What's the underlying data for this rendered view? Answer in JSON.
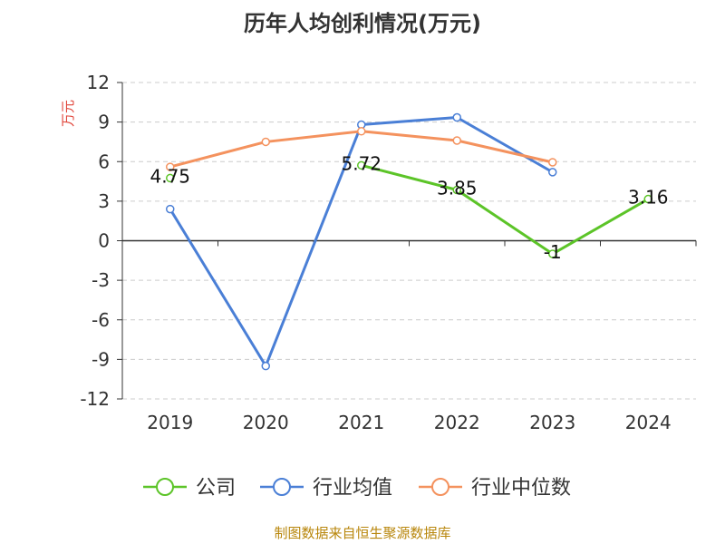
{
  "title": "历年人均创利情况(万元)",
  "footer": "制图数据来自恒生聚源数据库",
  "chart_data": {
    "type": "line",
    "categories": [
      "2019",
      "2020",
      "2021",
      "2022",
      "2023",
      "2024"
    ],
    "ylabel": "万元",
    "ylim": [
      -12,
      12
    ],
    "yticks": [
      12,
      9,
      6,
      3,
      0,
      -3,
      -6,
      -9,
      -12
    ],
    "grid": true,
    "legend_position": "bottom",
    "series": [
      {
        "name": "公司",
        "color": "#5cc428",
        "values": [
          4.75,
          null,
          5.72,
          3.85,
          -1,
          3.16
        ],
        "labels": [
          "4.75",
          "",
          "5.72",
          "3.85",
          "-1",
          "3.16"
        ]
      },
      {
        "name": "行业均值",
        "color": "#4a7fd6",
        "values": [
          2.4,
          -9.5,
          8.8,
          9.35,
          5.2,
          null
        ]
      },
      {
        "name": "行业中位数",
        "color": "#f4925e",
        "values": [
          5.6,
          7.5,
          8.3,
          7.6,
          5.95,
          null
        ]
      }
    ]
  }
}
